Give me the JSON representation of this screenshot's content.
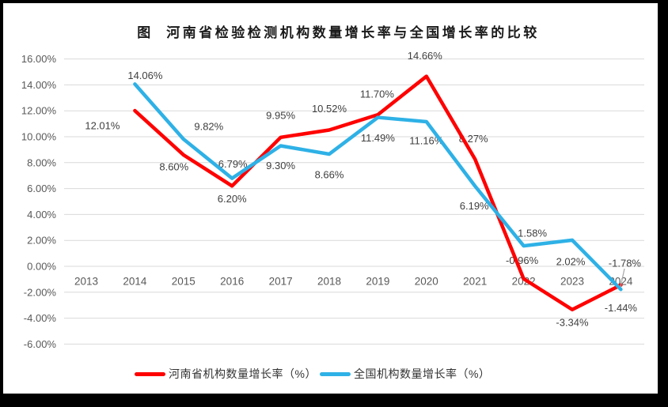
{
  "frame": {
    "background": "#000000",
    "chart_background": "#FFFFFF"
  },
  "chart_data": {
    "type": "line",
    "title": "图  河南省检验检测机构数量增长率与全国增长率的比较",
    "categories": [
      "2013",
      "2014",
      "2015",
      "2016",
      "2017",
      "2018",
      "2019",
      "2020",
      "2021",
      "2022",
      "2023",
      "2024"
    ],
    "y_axis": {
      "ticks": [
        "16.00%",
        "14.00%",
        "12.00%",
        "10.00%",
        "8.00%",
        "6.00%",
        "4.00%",
        "2.00%",
        "0.00%",
        "-2.00%",
        "-4.00%",
        "-6.00%"
      ],
      "max": 16,
      "min": -6,
      "step": 2,
      "format": "percent"
    },
    "grid": true,
    "legend_position": "bottom",
    "series": [
      {
        "name": "河南省机构数量增长率（%）",
        "color": "#FF0000",
        "values": [
          null,
          12.01,
          8.6,
          6.2,
          9.95,
          10.52,
          11.7,
          14.66,
          8.27,
          -0.96,
          -3.34,
          -1.44
        ],
        "labels": [
          null,
          "12.01%",
          "8.60%",
          "6.20%",
          "9.95%",
          "10.52%",
          "11.70%",
          "14.66%",
          "8.27%",
          "-0.96%",
          "-3.34%",
          "-1.44%"
        ]
      },
      {
        "name": "全国机构数量增长率（%）",
        "color": "#2EB1E6",
        "values": [
          null,
          14.06,
          9.82,
          6.79,
          9.3,
          8.66,
          11.49,
          11.16,
          6.19,
          1.58,
          2.02,
          -1.78
        ],
        "labels": [
          null,
          "14.06%",
          "9.82%",
          "6.79%",
          "9.30%",
          "8.66%",
          "11.49%",
          "11.16%",
          "6.19%",
          "1.58%",
          "2.02%",
          "-1.78%"
        ]
      }
    ],
    "colors": {
      "gridline": "#D9D9D9",
      "axis_text": "#595959",
      "label_text": "#3F3F3F",
      "leader_line": "#A6A6A6"
    }
  }
}
